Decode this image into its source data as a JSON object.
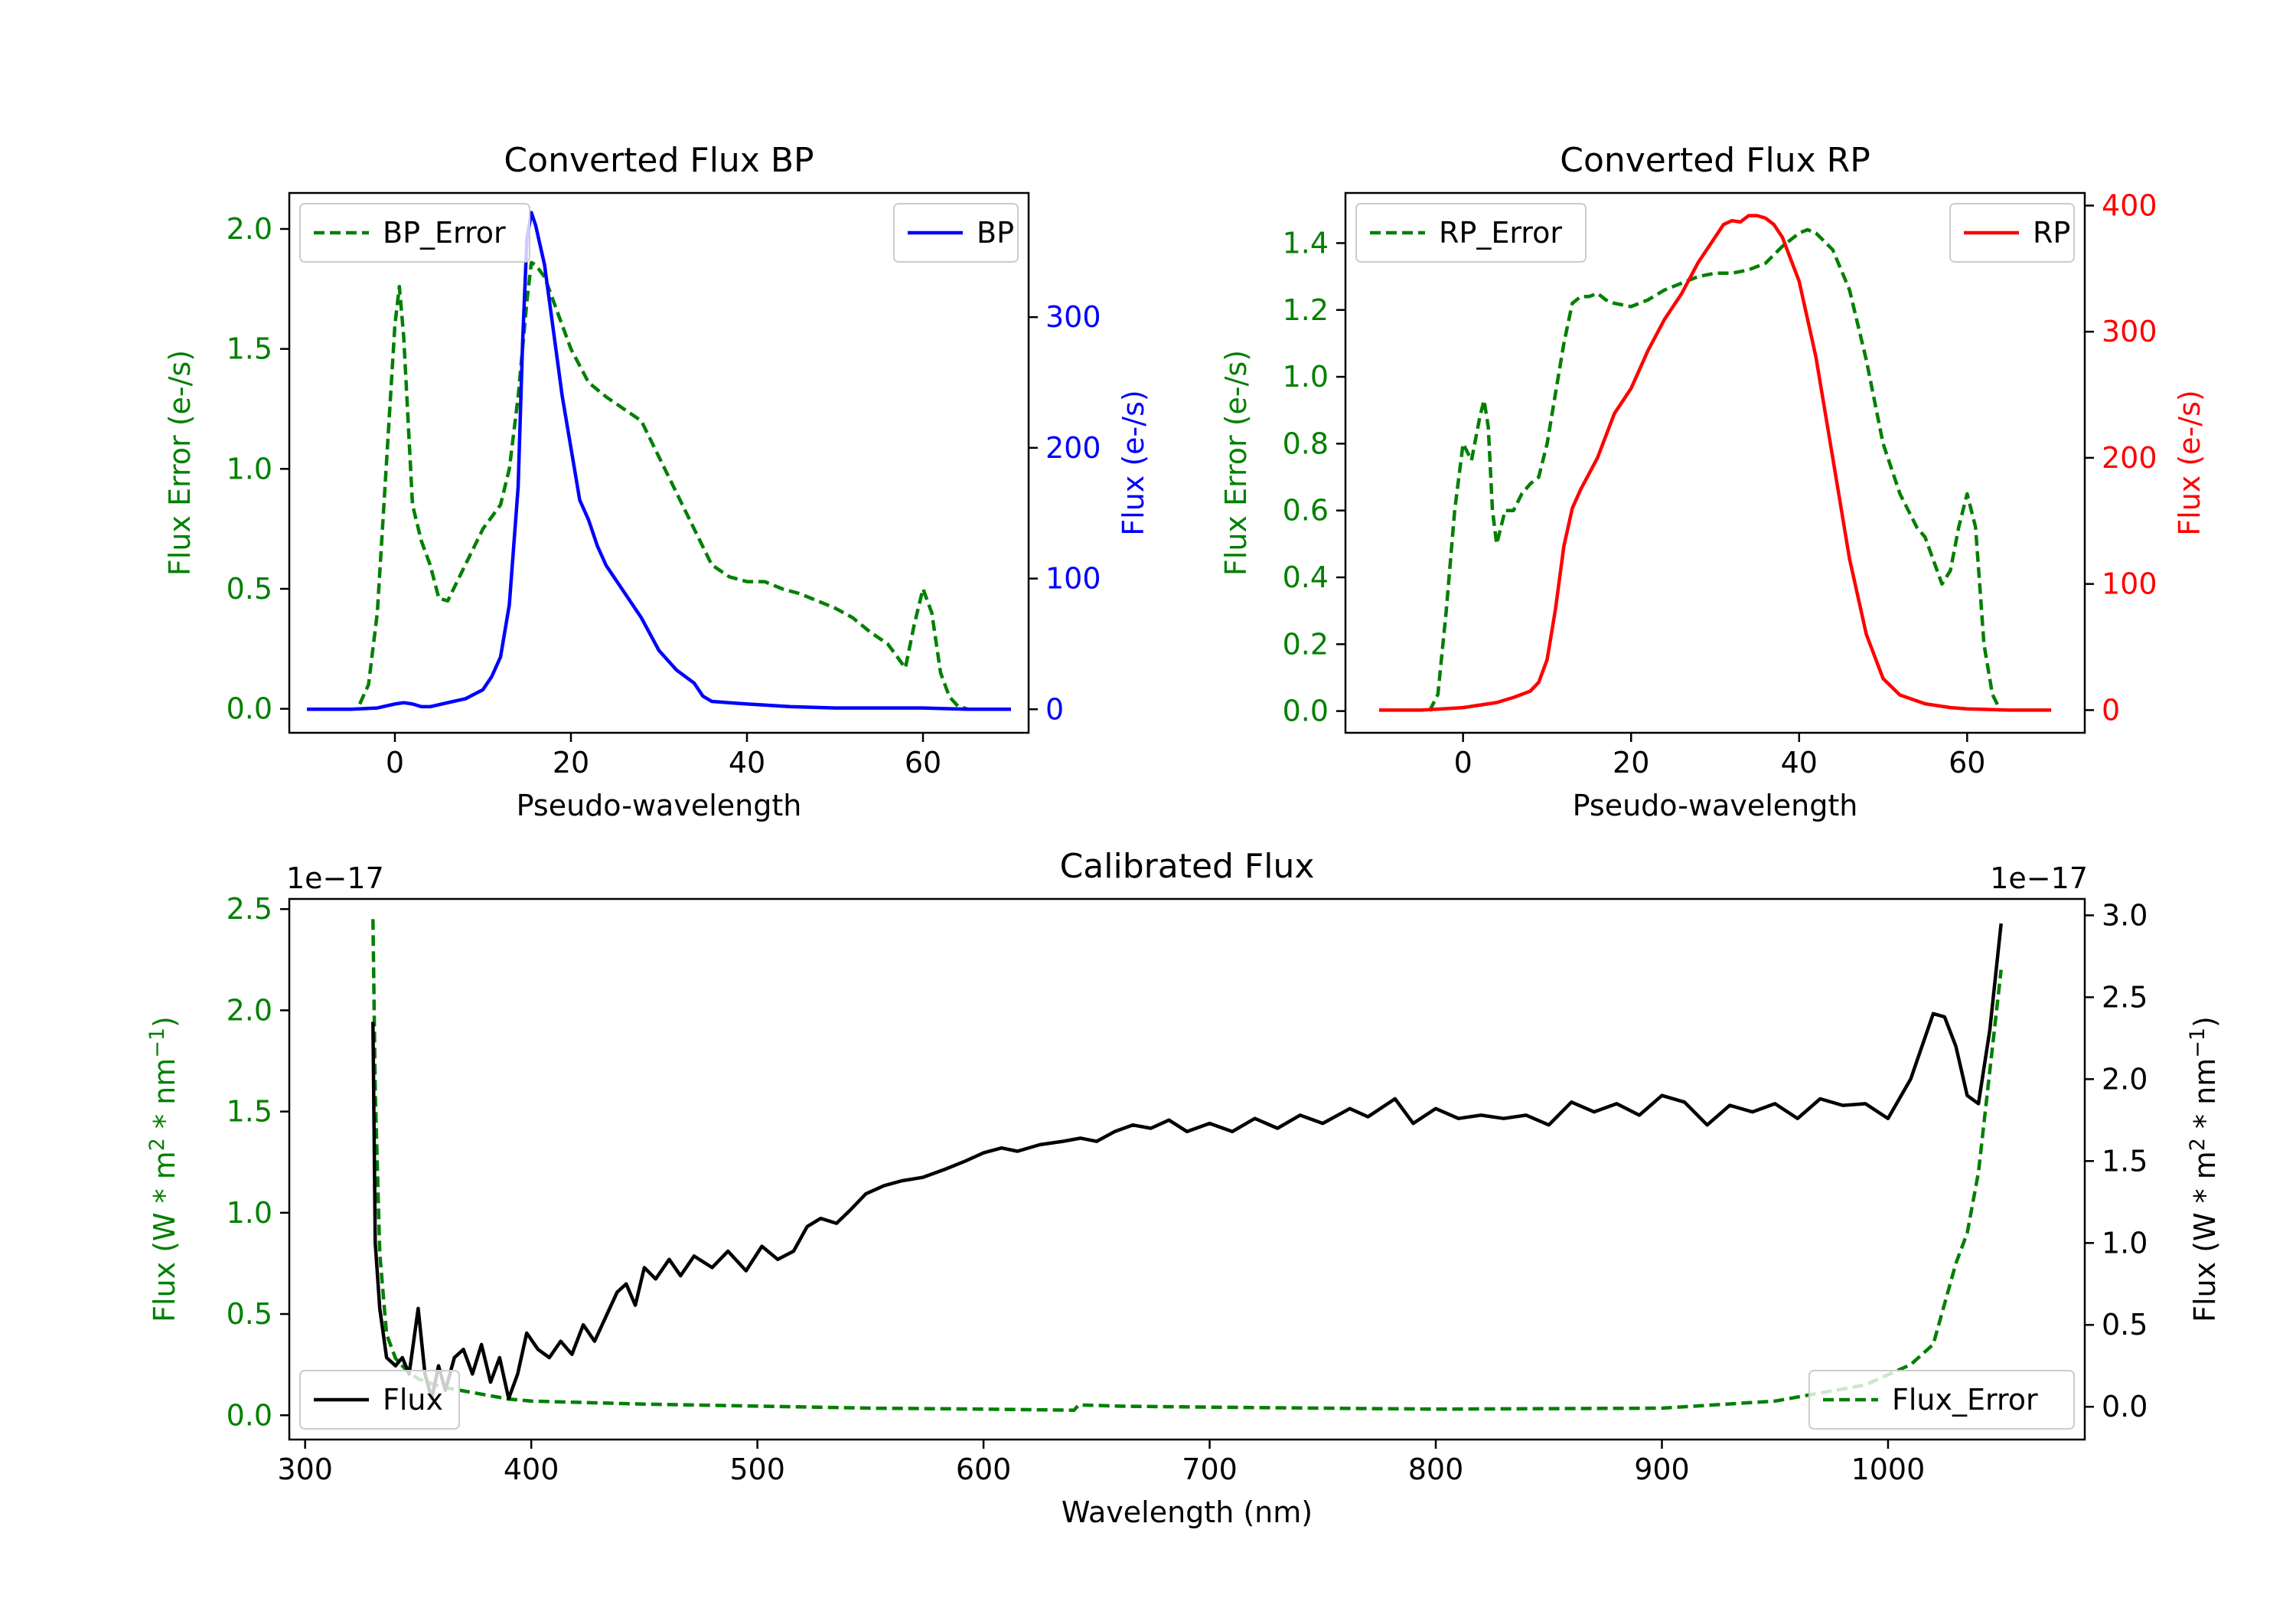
{
  "chart_data": [
    {
      "type": "line",
      "title": "Converted Flux BP",
      "xlabel": "Pseudo-wavelength",
      "ylabel_left": "Flux Error (e-/s)",
      "ylabel_right": "Flux (e-/s)",
      "xlim": [
        -12,
        72
      ],
      "ylim_left": [
        -0.1,
        2.15
      ],
      "ylim_right": [
        -18,
        395
      ],
      "xticks": [
        0,
        20,
        40,
        60
      ],
      "yticks_left": [
        0.0,
        0.5,
        1.0,
        1.5,
        2.0
      ],
      "yticks_left_labels": [
        "0.0",
        "0.5",
        "1.0",
        "1.5",
        "2.0"
      ],
      "yticks_right": [
        0,
        100,
        200,
        300
      ],
      "yticks_right_labels": [
        "0",
        "100",
        "200",
        "300"
      ],
      "colors": {
        "left": "#008000",
        "right": "#0000ff"
      },
      "legend_left": {
        "label": "BP_Error",
        "placement": "upper-left"
      },
      "legend_right": {
        "label": "BP",
        "placement": "upper-right"
      },
      "series": [
        {
          "name": "BP_Error",
          "axis": "left",
          "style": "dashed",
          "color": "#008000",
          "x": [
            -4,
            -3,
            -2,
            -1,
            0,
            0.5,
            1,
            2,
            3,
            4,
            5,
            6,
            8,
            10,
            12,
            13,
            14,
            15,
            15.5,
            16,
            17,
            18,
            20,
            22,
            24,
            26,
            28,
            30,
            32,
            34,
            36,
            38,
            40,
            42,
            44,
            46,
            48,
            50,
            52,
            54,
            56,
            57,
            58,
            59,
            60,
            61,
            62,
            63,
            64,
            65
          ],
          "values": [
            0.02,
            0.1,
            0.4,
            1.0,
            1.6,
            1.76,
            1.55,
            0.85,
            0.7,
            0.6,
            0.46,
            0.45,
            0.6,
            0.75,
            0.85,
            1.0,
            1.3,
            1.7,
            1.86,
            1.85,
            1.8,
            1.7,
            1.5,
            1.36,
            1.3,
            1.25,
            1.2,
            1.05,
            0.9,
            0.75,
            0.6,
            0.55,
            0.53,
            0.53,
            0.5,
            0.48,
            0.45,
            0.42,
            0.38,
            0.32,
            0.27,
            0.22,
            0.17,
            0.35,
            0.5,
            0.4,
            0.15,
            0.05,
            0.01,
            0.0
          ]
        },
        {
          "name": "BP",
          "axis": "right",
          "style": "solid",
          "color": "#0000ff",
          "x": [
            -10,
            -5,
            -2,
            0,
            1,
            2,
            3,
            4,
            6,
            8,
            10,
            11,
            12,
            13,
            14,
            14.5,
            15,
            15.5,
            16,
            17,
            18,
            19,
            20,
            21,
            22,
            23,
            24,
            26,
            28,
            30,
            32,
            34,
            35,
            36,
            38,
            40,
            45,
            50,
            55,
            60,
            65,
            70
          ],
          "values": [
            0,
            0,
            1,
            4,
            5,
            4,
            2,
            2,
            5,
            8,
            15,
            25,
            40,
            80,
            170,
            280,
            360,
            380,
            370,
            340,
            290,
            240,
            200,
            160,
            145,
            125,
            110,
            90,
            70,
            45,
            30,
            20,
            10,
            6,
            5,
            4,
            2,
            1,
            1,
            1,
            0,
            0
          ]
        }
      ]
    },
    {
      "type": "line",
      "title": "Converted Flux RP",
      "xlabel": "Pseudo-wavelength",
      "ylabel_left": "Flux Error (e-/s)",
      "ylabel_right": "Flux (e-/s)",
      "xlim": [
        -14,
        74
      ],
      "ylim_left": [
        -0.065,
        1.55
      ],
      "ylim_right": [
        -18,
        410
      ],
      "xticks": [
        0,
        20,
        40,
        60
      ],
      "yticks_left": [
        0.0,
        0.2,
        0.4,
        0.6,
        0.8,
        1.0,
        1.2,
        1.4
      ],
      "yticks_left_labels": [
        "0.0",
        "0.2",
        "0.4",
        "0.6",
        "0.8",
        "1.0",
        "1.2",
        "1.4"
      ],
      "yticks_right": [
        0,
        100,
        200,
        300,
        400
      ],
      "yticks_right_labels": [
        "0",
        "100",
        "200",
        "300",
        "400"
      ],
      "colors": {
        "left": "#008000",
        "right": "#ff0000"
      },
      "legend_left": {
        "label": "RP_Error",
        "placement": "upper-left"
      },
      "legend_right": {
        "label": "RP",
        "placement": "upper-right"
      },
      "series": [
        {
          "name": "RP_Error",
          "axis": "left",
          "style": "dashed",
          "color": "#008000",
          "x": [
            -4,
            -3,
            -2,
            -1,
            0,
            1,
            2,
            2.5,
            3,
            3.5,
            4,
            5,
            6,
            7,
            8,
            9,
            10,
            11,
            12,
            13,
            14,
            15,
            16,
            17,
            18,
            20,
            22,
            24,
            26,
            28,
            30,
            32,
            34,
            36,
            38,
            40,
            41,
            42,
            44,
            46,
            48,
            50,
            52,
            54,
            55,
            56,
            57,
            58,
            59,
            60,
            61,
            62,
            63,
            64
          ],
          "values": [
            0.0,
            0.05,
            0.3,
            0.6,
            0.8,
            0.75,
            0.88,
            0.93,
            0.85,
            0.6,
            0.5,
            0.6,
            0.6,
            0.65,
            0.68,
            0.7,
            0.8,
            0.95,
            1.1,
            1.22,
            1.24,
            1.24,
            1.25,
            1.23,
            1.22,
            1.21,
            1.23,
            1.26,
            1.28,
            1.3,
            1.31,
            1.31,
            1.32,
            1.34,
            1.39,
            1.43,
            1.44,
            1.43,
            1.38,
            1.26,
            1.05,
            0.8,
            0.65,
            0.55,
            0.52,
            0.45,
            0.38,
            0.42,
            0.55,
            0.65,
            0.55,
            0.2,
            0.05,
            0.0
          ]
        },
        {
          "name": "RP",
          "axis": "right",
          "style": "solid",
          "color": "#ff0000",
          "x": [
            -10,
            -5,
            0,
            4,
            6,
            8,
            9,
            10,
            11,
            12,
            13,
            14,
            16,
            18,
            20,
            22,
            24,
            26,
            28,
            30,
            31,
            32,
            33,
            34,
            35,
            36,
            37,
            38,
            40,
            42,
            44,
            46,
            48,
            50,
            52,
            55,
            58,
            60,
            65,
            70
          ],
          "values": [
            0,
            0,
            2,
            6,
            10,
            15,
            22,
            40,
            80,
            130,
            160,
            175,
            200,
            235,
            255,
            285,
            310,
            330,
            355,
            375,
            385,
            388,
            387,
            392,
            392,
            390,
            385,
            375,
            340,
            280,
            200,
            120,
            60,
            25,
            12,
            5,
            2,
            1,
            0,
            0
          ]
        }
      ]
    },
    {
      "type": "line",
      "title": "Calibrated Flux",
      "xlabel": "Wavelength (nm)",
      "ylabel_left": "Flux (W * m$^2$ * nm$^{-1}$)",
      "ylabel_right": "Flux (W * m$^2$ * nm$^{-1}$)",
      "ylabel_left_text": "Flux (W * m",
      "ylabel_sup1": "2",
      "ylabel_mid": " * nm",
      "ylabel_sup2": "−1",
      "ylabel_end": ")",
      "offset_left": "1e−17",
      "offset_right": "1e−17",
      "xlim": [
        293,
        1087
      ],
      "ylim_left": [
        -0.12,
        2.55
      ],
      "ylim_right": [
        -0.2,
        3.1
      ],
      "xticks": [
        300,
        400,
        500,
        600,
        700,
        800,
        900,
        1000
      ],
      "yticks_left": [
        0.0,
        0.5,
        1.0,
        1.5,
        2.0,
        2.5
      ],
      "yticks_left_labels": [
        "0.0",
        "0.5",
        "1.0",
        "1.5",
        "2.0",
        "2.5"
      ],
      "yticks_right": [
        0.0,
        0.5,
        1.0,
        1.5,
        2.0,
        2.5,
        3.0
      ],
      "yticks_right_labels": [
        "0.0",
        "0.5",
        "1.0",
        "1.5",
        "2.0",
        "2.5",
        "3.0"
      ],
      "colors": {
        "left": "#008000",
        "right": "#000000"
      },
      "legend_left": {
        "label": "Flux",
        "placement": "lower-left"
      },
      "legend_right": {
        "label": "Flux_Error",
        "placement": "lower-right"
      },
      "series": [
        {
          "name": "Flux_Error",
          "axis": "left",
          "style": "dashed",
          "color": "#008000",
          "x": [
            330,
            331,
            333,
            336,
            340,
            345,
            350,
            360,
            370,
            380,
            390,
            400,
            450,
            500,
            550,
            600,
            640,
            642,
            645,
            660,
            700,
            800,
            900,
            950,
            990,
            1010,
            1020,
            1025,
            1030,
            1035,
            1040,
            1045,
            1050
          ],
          "values": [
            2.45,
            1.6,
            0.8,
            0.4,
            0.28,
            0.22,
            0.18,
            0.14,
            0.12,
            0.1,
            0.08,
            0.07,
            0.055,
            0.045,
            0.035,
            0.03,
            0.025,
            0.05,
            0.05,
            0.045,
            0.04,
            0.03,
            0.035,
            0.07,
            0.15,
            0.25,
            0.35,
            0.55,
            0.75,
            0.9,
            1.2,
            1.7,
            2.2
          ]
        },
        {
          "name": "Flux",
          "axis": "right",
          "style": "solid",
          "color": "#000000",
          "x": [
            330,
            331,
            333,
            336,
            340,
            343,
            346,
            350,
            353,
            356,
            359,
            362,
            366,
            370,
            374,
            378,
            382,
            386,
            390,
            394,
            398,
            403,
            408,
            413,
            418,
            423,
            428,
            433,
            438,
            442,
            446,
            450,
            455,
            461,
            466,
            472,
            480,
            487,
            495,
            502,
            509,
            516,
            522,
            528,
            535,
            541,
            548,
            556,
            564,
            573,
            583,
            592,
            600,
            608,
            615,
            625,
            635,
            643,
            650,
            658,
            666,
            674,
            682,
            690,
            700,
            710,
            720,
            730,
            740,
            750,
            762,
            770,
            782,
            790,
            800,
            810,
            820,
            830,
            840,
            850,
            860,
            870,
            880,
            890,
            900,
            910,
            920,
            930,
            940,
            950,
            960,
            970,
            980,
            990,
            1000,
            1010,
            1020,
            1025,
            1030,
            1035,
            1040,
            1045,
            1050
          ],
          "values": [
            2.35,
            1.0,
            0.6,
            0.3,
            0.25,
            0.3,
            0.2,
            0.6,
            0.2,
            0.05,
            0.25,
            0.1,
            0.3,
            0.35,
            0.2,
            0.38,
            0.15,
            0.3,
            0.05,
            0.2,
            0.45,
            0.35,
            0.3,
            0.4,
            0.32,
            0.5,
            0.4,
            0.55,
            0.7,
            0.75,
            0.62,
            0.85,
            0.78,
            0.9,
            0.8,
            0.92,
            0.85,
            0.95,
            0.83,
            0.98,
            0.9,
            0.95,
            1.1,
            1.15,
            1.12,
            1.2,
            1.3,
            1.35,
            1.38,
            1.4,
            1.45,
            1.5,
            1.55,
            1.58,
            1.56,
            1.6,
            1.62,
            1.64,
            1.62,
            1.68,
            1.72,
            1.7,
            1.75,
            1.68,
            1.73,
            1.68,
            1.76,
            1.7,
            1.78,
            1.73,
            1.82,
            1.77,
            1.88,
            1.73,
            1.82,
            1.76,
            1.78,
            1.76,
            1.78,
            1.72,
            1.86,
            1.8,
            1.85,
            1.78,
            1.9,
            1.86,
            1.72,
            1.84,
            1.8,
            1.85,
            1.76,
            1.88,
            1.84,
            1.85,
            1.76,
            2.0,
            2.4,
            2.38,
            2.2,
            1.9,
            1.85,
            2.3,
            2.95
          ]
        }
      ]
    }
  ]
}
